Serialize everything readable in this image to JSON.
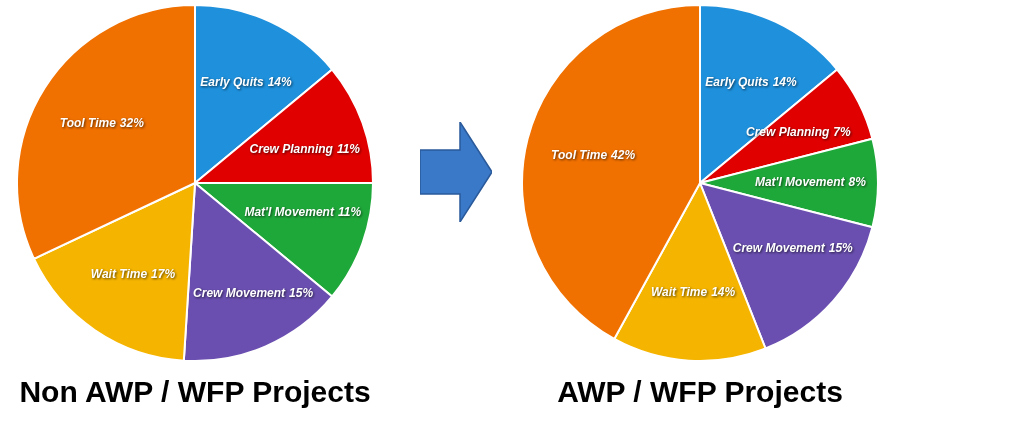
{
  "chart_data": [
    {
      "type": "pie",
      "title": "Non AWP / WFP Projects",
      "categories": [
        "Early Quits",
        "Crew Planning",
        "Mat'l Movement",
        "Crew Movement",
        "Wait Time",
        "Tool Time"
      ],
      "values": [
        14,
        11,
        11,
        15,
        17,
        32
      ],
      "colors": [
        "#1e90dc",
        "#e00000",
        "#1fa83a",
        "#6a4fb0",
        "#f5b400",
        "#f07000"
      ],
      "value_labels": [
        "14%",
        "11%",
        "11%",
        "15%",
        "17%",
        "32%"
      ],
      "legend": false
    },
    {
      "type": "pie",
      "title": "AWP / WFP Projects",
      "categories": [
        "Early Quits",
        "Crew Planning",
        "Mat'l Movement",
        "Crew Movement",
        "Wait Time",
        "Tool Time"
      ],
      "values": [
        14,
        7,
        8,
        15,
        14,
        42
      ],
      "colors": [
        "#1e90dc",
        "#e00000",
        "#1fa83a",
        "#6a4fb0",
        "#f5b400",
        "#f07000"
      ],
      "value_labels": [
        "14%",
        "7%",
        "8%",
        "15%",
        "14%",
        "42%"
      ],
      "legend": false
    }
  ]
}
